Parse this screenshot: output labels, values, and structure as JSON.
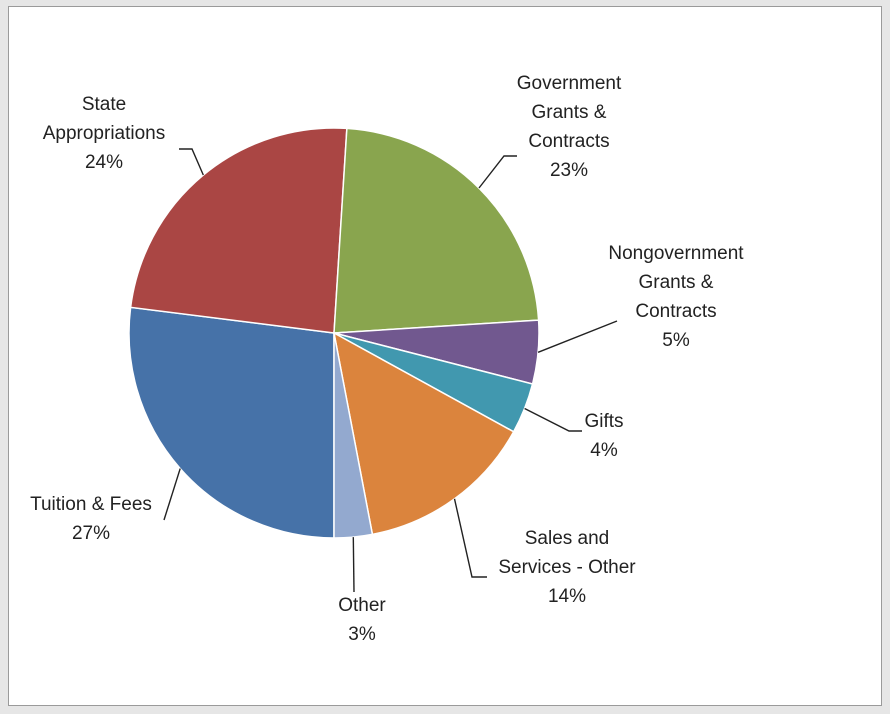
{
  "chart_data": {
    "type": "pie",
    "title": "",
    "slices": [
      {
        "label": [
          "Tuition & Fees",
          "27%"
        ],
        "value": 27,
        "color": "#4672a8"
      },
      {
        "label": [
          "State",
          "Appropriations",
          "24%"
        ],
        "value": 24,
        "color": "#aa4644"
      },
      {
        "label": [
          "Government",
          "Grants &",
          "Contracts",
          "23%"
        ],
        "value": 23,
        "color": "#89a54e"
      },
      {
        "label": [
          "Nongovernment",
          "Grants &",
          "Contracts",
          "5%"
        ],
        "value": 5,
        "color": "#71588f"
      },
      {
        "label": [
          "Gifts",
          "4%"
        ],
        "value": 4,
        "color": "#4198af"
      },
      {
        "label": [
          "Sales and",
          "Services - Other",
          "14%"
        ],
        "value": 14,
        "color": "#db843d"
      },
      {
        "label": [
          "Other",
          "3%"
        ],
        "value": 3,
        "color": "#93a9cf"
      }
    ],
    "legend": "none"
  }
}
